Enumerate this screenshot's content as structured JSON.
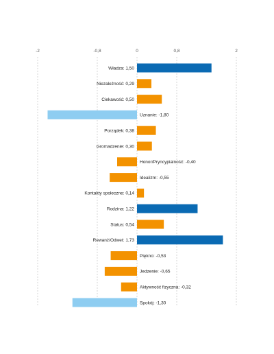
{
  "chart_data": {
    "type": "bar",
    "orientation": "horizontal",
    "xlim": [
      -2,
      2
    ],
    "ticks": [
      {
        "value": -2,
        "label": "-2"
      },
      {
        "value": -0.8,
        "label": "-0,8"
      },
      {
        "value": 0,
        "label": "0"
      },
      {
        "value": 0.8,
        "label": "0,8"
      },
      {
        "value": 2,
        "label": "2"
      }
    ],
    "grid": true,
    "colors": {
      "strong_positive": "#0a6ab3",
      "moderate": "#f39200",
      "strong_negative": "#8ecdf1"
    },
    "categories": [
      {
        "name": "Władza",
        "value": 1.5,
        "label": "Władza: 1,50",
        "color_key": "strong_positive"
      },
      {
        "name": "Niezależność",
        "value": 0.29,
        "label": "Niezależność: 0,29",
        "color_key": "moderate"
      },
      {
        "name": "Ciekawość",
        "value": 0.5,
        "label": "Ciekawość: 0,50",
        "color_key": "moderate"
      },
      {
        "name": "Uznanie",
        "value": -1.8,
        "label": "Uznanie: -1,80",
        "color_key": "strong_negative"
      },
      {
        "name": "Porządek",
        "value": 0.38,
        "label": "Porządek: 0,38",
        "color_key": "moderate"
      },
      {
        "name": "Gromadzenie",
        "value": 0.3,
        "label": "Gromadzenie: 0,30",
        "color_key": "moderate"
      },
      {
        "name": "Honor/Pryncypialność",
        "value": -0.4,
        "label": "Honor/Pryncypialność: -0,40",
        "color_key": "moderate"
      },
      {
        "name": "Idealizm",
        "value": -0.55,
        "label": "Idealizm: -0,55",
        "color_key": "moderate"
      },
      {
        "name": "Kontakty społeczne",
        "value": 0.14,
        "label": "Kontakty społeczne: 0,14",
        "color_key": "moderate"
      },
      {
        "name": "Rodzina",
        "value": 1.22,
        "label": "Rodzina: 1,22",
        "color_key": "strong_positive"
      },
      {
        "name": "Status",
        "value": 0.54,
        "label": "Status: 0,54",
        "color_key": "moderate"
      },
      {
        "name": "Rewanż/Odwet",
        "value": 1.73,
        "label": "Rewanż/Odwet: 1,73",
        "color_key": "strong_positive"
      },
      {
        "name": "Piękno",
        "value": -0.53,
        "label": "Piękno: -0,53",
        "color_key": "moderate"
      },
      {
        "name": "Jedzenie",
        "value": -0.65,
        "label": "Jedzenie: -0,65",
        "color_key": "moderate"
      },
      {
        "name": "Aktywność fizyczna",
        "value": -0.32,
        "label": "Aktywność fizyczna: -0,32",
        "color_key": "moderate"
      },
      {
        "name": "Spokój",
        "value": -1.3,
        "label": "Spokój: -1,30",
        "color_key": "strong_negative"
      }
    ]
  }
}
